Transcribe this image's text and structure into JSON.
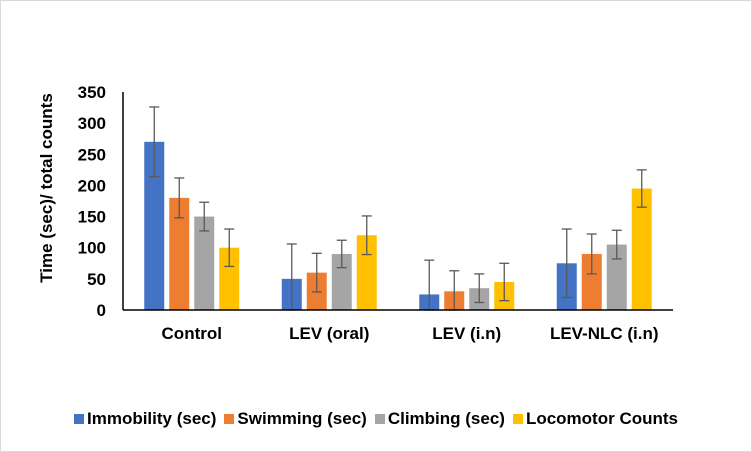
{
  "chart_data": {
    "type": "bar",
    "title": "",
    "xlabel": "",
    "ylabel": "Time (sec)/ total counts",
    "ylim": [
      0,
      350
    ],
    "yticks": [
      0,
      50,
      100,
      150,
      200,
      250,
      300,
      350
    ],
    "categories": [
      "Control",
      "LEV (oral)",
      "LEV (i.n)",
      "LEV-NLC (i.n)"
    ],
    "grid": false,
    "legend_position": "bottom",
    "series": [
      {
        "name": "Immobility (sec)",
        "color": "#4472C4",
        "values": [
          270,
          50,
          25,
          75
        ],
        "errors": [
          56,
          56,
          55,
          55
        ]
      },
      {
        "name": "Swimming (sec)",
        "color": "#ED7D31",
        "values": [
          180,
          60,
          30,
          90
        ],
        "errors": [
          32,
          31,
          33,
          32
        ]
      },
      {
        "name": "Climbing (sec)",
        "color": "#A5A5A5",
        "values": [
          150,
          90,
          35,
          105
        ],
        "errors": [
          23,
          22,
          23,
          23
        ]
      },
      {
        "name": "Locomotor Counts",
        "color": "#FFC000",
        "values": [
          100,
          120,
          45,
          195
        ],
        "errors": [
          30,
          31,
          30,
          30
        ]
      }
    ]
  }
}
